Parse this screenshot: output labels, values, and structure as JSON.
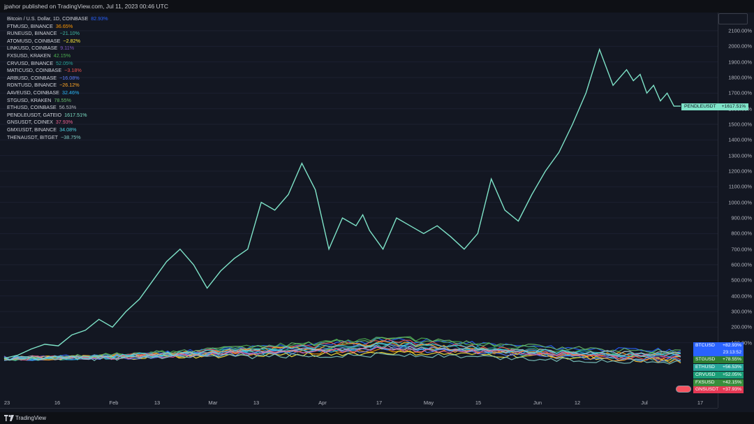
{
  "header": {
    "text": "jpahor published on TradingView.com, Jul 11, 2023 00:46 UTC"
  },
  "footer": {
    "brand": "TradingView"
  },
  "chart_data": {
    "type": "line",
    "x_ticks": [
      "23",
      "16",
      "Feb",
      "13",
      "Mar",
      "13",
      "Apr",
      "17",
      "May",
      "15",
      "Jun",
      "12",
      "Jul",
      "17"
    ],
    "y_ticks": [
      "100.00%",
      "200.00%",
      "300.00%",
      "400.00%",
      "500.00%",
      "600.00%",
      "700.00%",
      "800.00%",
      "900.00%",
      "1000.00%",
      "1100.00%",
      "1200.00%",
      "1300.00%",
      "1400.00%",
      "1500.00%",
      "1600.00%",
      "1700.00%",
      "1800.00%",
      "1900.00%",
      "2000.00%",
      "2100.00%"
    ],
    "ylim": [
      0,
      2200
    ],
    "y_unit": "%",
    "legend": [
      {
        "name": "Bitcoin / U.S. Dollar, 1D, COINBASE",
        "change": "82.93%",
        "color": "#2962ff"
      },
      {
        "name": "FTMUSD, BINANCE",
        "change": "36.65%",
        "color": "#ff9800"
      },
      {
        "name": "RUNEUSD, BINANCE",
        "change": "−21.10%",
        "color": "#42bda8"
      },
      {
        "name": "ATOMUSD, COINBASE",
        "change": "−2.82%",
        "color": "#ffeb3b"
      },
      {
        "name": "LINKUSD, COINBASE",
        "change": "9.11%",
        "color": "#7e57c2"
      },
      {
        "name": "FXSUSD, KRAKEN",
        "change": "42.15%",
        "color": "#4caf50"
      },
      {
        "name": "CRVUSD, BINANCE",
        "change": "52.05%",
        "color": "#26a69a"
      },
      {
        "name": "MATICUSD, COINBASE",
        "change": "−3.18%",
        "color": "#ef5350"
      },
      {
        "name": "ARBUSD, COINBASE",
        "change": "−16.08%",
        "color": "#5c7cfa"
      },
      {
        "name": "RDNTUSD, BINANCE",
        "change": "−26.12%",
        "color": "#ffa726"
      },
      {
        "name": "AAVEUSD, COINBASE",
        "change": "32.46%",
        "color": "#29b6f6"
      },
      {
        "name": "STGUSD, KRAKEN",
        "change": "78.55%",
        "color": "#66bb6a"
      },
      {
        "name": "ETHUSD, COINBASE",
        "change": "56.53%",
        "color": "#b2b5be"
      },
      {
        "name": "PENDLEUSDT, GATEIO",
        "change": "1617.51%",
        "color": "#7ee3c8"
      },
      {
        "name": "GNSUSDT, COINEX",
        "change": "37.93%",
        "color": "#f06292"
      },
      {
        "name": "GMXUSDT, BINANCE",
        "change": "34.08%",
        "color": "#4dd0e1"
      },
      {
        "name": "THENAUSDT, BITGET",
        "change": "−38.75%",
        "color": "#80cbc4"
      }
    ],
    "main_series": {
      "name": "PENDLEUSDT",
      "color": "#7ee3c8",
      "t": [
        0.0,
        0.02,
        0.04,
        0.06,
        0.08,
        0.1,
        0.12,
        0.14,
        0.16,
        0.18,
        0.2,
        0.22,
        0.24,
        0.26,
        0.28,
        0.3,
        0.32,
        0.34,
        0.36,
        0.38,
        0.4,
        0.42,
        0.44,
        0.46,
        0.48,
        0.5,
        0.52,
        0.53,
        0.54,
        0.56,
        0.58,
        0.6,
        0.62,
        0.64,
        0.66,
        0.68,
        0.7,
        0.72,
        0.74,
        0.76,
        0.78,
        0.8,
        0.82,
        0.84,
        0.86,
        0.88,
        0.9,
        0.92,
        0.93,
        0.94,
        0.95,
        0.96,
        0.97,
        0.98,
        0.99,
        1.0
      ],
      "values": [
        0,
        20,
        60,
        90,
        80,
        150,
        180,
        250,
        200,
        300,
        380,
        500,
        620,
        700,
        600,
        450,
        560,
        640,
        700,
        1000,
        950,
        1050,
        1250,
        1080,
        700,
        900,
        850,
        920,
        820,
        700,
        900,
        850,
        800,
        850,
        780,
        700,
        800,
        1150,
        950,
        880,
        1050,
        1200,
        1320,
        1500,
        1700,
        1980,
        1750,
        1850,
        1780,
        1820,
        1700,
        1750,
        1650,
        1700,
        1617,
        1617
      ]
    },
    "price_labels": [
      {
        "name": "BTCUSD",
        "value": "+82.93%",
        "color": "#2962ff"
      },
      {
        "name": "",
        "value": "23:13:52",
        "color": "#2962ff"
      },
      {
        "name": "STGUSD",
        "value": "+78.55%",
        "color": "#2e7d32"
      },
      {
        "name": "ETHUSD",
        "value": "+56.53%",
        "color": "#26a69a"
      },
      {
        "name": "CRVUSD",
        "value": "+52.05%",
        "color": "#1b9e77"
      },
      {
        "name": "FXSUSD",
        "value": "+42.15%",
        "color": "#388e3c"
      },
      {
        "name": "GNSUSDT",
        "value": "+37.93%",
        "color": "#e53955"
      }
    ],
    "pendle_label": {
      "name": "PENDLEUSDT",
      "value": "+1617.51%"
    }
  }
}
